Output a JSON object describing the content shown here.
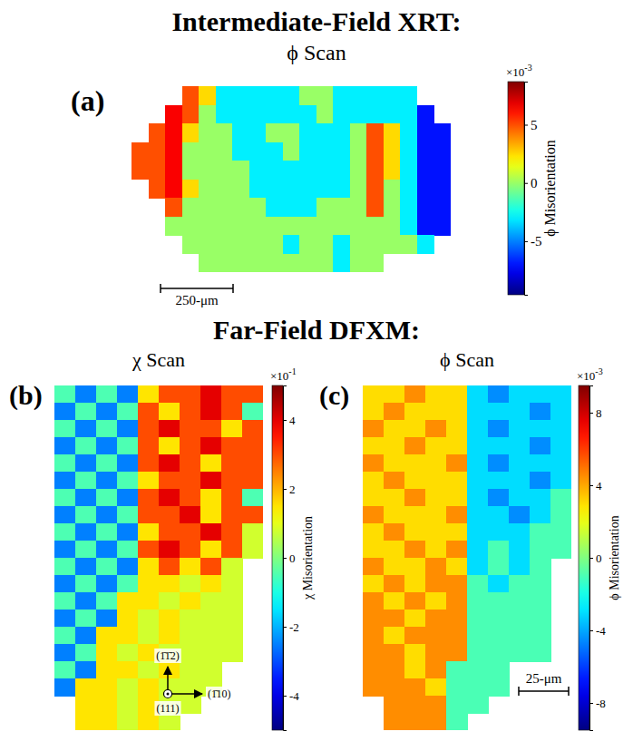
{
  "chart_data": [
    {
      "type": "heatmap",
      "heading": "Intermediate-Field XRT:",
      "title": "ϕ Scan",
      "panel_label": "(a)",
      "cells": [
        [
          null,
          null,
          null,
          5,
          2.5,
          -3,
          -3,
          -3,
          -3,
          -3,
          0,
          0,
          -3,
          -3,
          -3,
          -3,
          -3,
          null,
          null,
          null
        ],
        [
          null,
          null,
          6.5,
          5,
          0,
          -3,
          -3,
          -3,
          -3,
          -3,
          -3,
          0,
          -3,
          -3,
          -3,
          -3,
          -3,
          -7,
          null,
          null
        ],
        [
          null,
          5,
          6.5,
          2.5,
          0,
          0,
          -3,
          -3,
          0,
          0,
          -3,
          -3,
          -3,
          0,
          5,
          2.5,
          -3,
          -7,
          -7,
          null
        ],
        [
          5,
          5,
          6.5,
          0,
          0,
          0,
          -3,
          -3,
          -3,
          0,
          -3,
          -3,
          -3,
          0,
          5,
          2.5,
          -3,
          -7,
          -7,
          null
        ],
        [
          5,
          5,
          6.5,
          0,
          0,
          0,
          0,
          -3,
          -3,
          -3,
          -3,
          -3,
          -3,
          0,
          5,
          2.5,
          -3,
          -7,
          -7,
          null
        ],
        [
          null,
          5,
          6.5,
          2.5,
          0,
          0,
          0,
          -3,
          -3,
          -3,
          -3,
          -3,
          -3,
          0,
          5,
          0,
          -3,
          -7,
          -7,
          null
        ],
        [
          null,
          null,
          5,
          0,
          0,
          0,
          0,
          0,
          -3,
          -3,
          -3,
          0,
          0,
          0,
          5,
          0,
          -3,
          -7,
          -7,
          null
        ],
        [
          null,
          null,
          0,
          0,
          0,
          0,
          0,
          0,
          0,
          0,
          0,
          0,
          0,
          0,
          0,
          0,
          -3,
          -7,
          -7,
          null
        ],
        [
          null,
          null,
          null,
          0,
          0,
          0,
          0,
          0,
          0,
          -3,
          0,
          0,
          -3,
          0,
          0,
          0,
          0,
          -3,
          null,
          null
        ],
        [
          null,
          null,
          null,
          null,
          0,
          0,
          0,
          0,
          0,
          0,
          0,
          0,
          -3,
          0,
          0,
          null,
          null,
          null,
          null,
          null
        ]
      ],
      "colorbar": {
        "label": "ϕ Misorientation",
        "lim": [
          -9.6,
          8.7
        ],
        "ticks": [
          5,
          0,
          -5
        ],
        "multiplier": "×10",
        "exponent": "-3"
      },
      "scale_bar": "250-μm"
    },
    {
      "type": "heatmap",
      "heading": "Far-Field DFXM:",
      "title": "χ Scan",
      "panel_label": "(b)",
      "cells": [
        [
          -0.5,
          -2.5,
          -0.5,
          -2.5,
          1.5,
          3,
          3,
          4,
          3,
          3
        ],
        [
          -2.5,
          -0.5,
          -2.5,
          -0.5,
          3,
          1.5,
          3,
          4,
          3,
          -0.5
        ],
        [
          -0.5,
          -2.5,
          -0.5,
          -2.5,
          3,
          4,
          3,
          3,
          1.5,
          3
        ],
        [
          -2.5,
          -0.5,
          -2.5,
          -0.5,
          3,
          1.5,
          3,
          4,
          3,
          3
        ],
        [
          -0.5,
          -2.5,
          -0.5,
          -2.5,
          3,
          4,
          3,
          1.5,
          3,
          3
        ],
        [
          -2.5,
          -0.5,
          -2.5,
          -0.5,
          1.5,
          3,
          3,
          4,
          3,
          3
        ],
        [
          -0.5,
          -2.5,
          -0.5,
          -2.5,
          3,
          4,
          3,
          1.5,
          3,
          -0.5
        ],
        [
          -2.5,
          -0.5,
          -2.5,
          -0.5,
          3,
          3,
          4,
          1.5,
          3,
          3
        ],
        [
          -0.5,
          -2.5,
          -0.5,
          -2.5,
          1.5,
          3,
          3,
          4,
          3,
          0.8
        ],
        [
          -2.5,
          -0.5,
          -2.5,
          -0.5,
          3,
          4,
          3,
          1.5,
          3,
          0.8
        ],
        [
          -0.5,
          -2.5,
          -0.5,
          -2.5,
          1.5,
          3,
          1.5,
          3,
          0.8,
          null
        ],
        [
          -2.5,
          -0.5,
          -2.5,
          -0.5,
          1.5,
          1.5,
          0.8,
          1.5,
          0.8,
          null
        ],
        [
          -0.5,
          -2.5,
          -0.5,
          1.5,
          1.5,
          0.8,
          1.5,
          0.8,
          0.8,
          null
        ],
        [
          -2.5,
          -0.5,
          -2.5,
          1.5,
          0.8,
          1.5,
          0.8,
          0.8,
          0.8,
          null
        ],
        [
          -0.5,
          -2.5,
          1.5,
          1.5,
          0.8,
          1.5,
          0.8,
          0.8,
          0.8,
          null
        ],
        [
          -2.5,
          -0.5,
          1.5,
          0.8,
          1.5,
          0.8,
          0.8,
          0.8,
          0.8,
          null
        ],
        [
          -0.5,
          -2.5,
          1.5,
          1.5,
          0.8,
          1.5,
          0.8,
          0.8,
          null,
          null
        ],
        [
          -2.5,
          1.5,
          1.5,
          0.8,
          1.5,
          0.8,
          0.8,
          0.8,
          null,
          null
        ],
        [
          null,
          1.5,
          1.5,
          0.8,
          1.5,
          0.8,
          0.8,
          null,
          null,
          null
        ],
        [
          null,
          1.5,
          1.5,
          0.8,
          1.5,
          0.8,
          null,
          null,
          null,
          null
        ]
      ],
      "colorbar": {
        "label": "χ Misorientation",
        "lim": [
          -5,
          5
        ],
        "ticks": [
          4,
          2,
          0,
          -2,
          -4
        ],
        "multiplier": "×10",
        "exponent": "-1"
      },
      "annotations": [
        "(1̄1̄2)",
        "(111)",
        "(1̄10)"
      ]
    },
    {
      "type": "heatmap",
      "title": "ϕ Scan",
      "panel_label": "(c)",
      "cells": [
        [
          3,
          3,
          4.5,
          3,
          3,
          -3,
          -4.5,
          -3,
          -3,
          -3
        ],
        [
          3,
          4.5,
          3,
          3,
          3,
          -3,
          -3,
          -3,
          -4.5,
          -3
        ],
        [
          4.5,
          3,
          3,
          4.5,
          3,
          -3,
          -4.5,
          -3,
          -3,
          -3
        ],
        [
          3,
          3,
          4.5,
          3,
          3,
          -3,
          -3,
          -3,
          -4.5,
          -3
        ],
        [
          4.5,
          3,
          3,
          3,
          4.5,
          -3,
          -4.5,
          -3,
          -3,
          -3
        ],
        [
          3,
          4.5,
          3,
          3,
          3,
          -3,
          -3,
          -3,
          -4.5,
          -3
        ],
        [
          3,
          3,
          4.5,
          3,
          3,
          -3,
          -4.5,
          -3,
          -3,
          -1
        ],
        [
          4.5,
          3,
          3,
          3,
          4.5,
          -3,
          -3,
          -4.5,
          -3,
          -1
        ],
        [
          3,
          4.5,
          3,
          3,
          3,
          -3,
          -3,
          -3,
          -1,
          -1
        ],
        [
          3,
          3,
          4.5,
          3,
          4.5,
          -3,
          -1,
          -3,
          -1,
          -1
        ],
        [
          4.5,
          3,
          3,
          4.5,
          3,
          -3,
          -1,
          -3,
          -1,
          null
        ],
        [
          3,
          4.5,
          3,
          4.5,
          4.5,
          -1,
          -3,
          -1,
          -1,
          null
        ],
        [
          4.5,
          3,
          4.5,
          3,
          4.5,
          -1,
          -1,
          -1,
          -1,
          null
        ],
        [
          4.5,
          4.5,
          3,
          4.5,
          4.5,
          -1,
          -1,
          -1,
          -1,
          null
        ],
        [
          4.5,
          3,
          4.5,
          4.5,
          4.5,
          -1,
          -1,
          -1,
          -1,
          null
        ],
        [
          4.5,
          4.5,
          3,
          4.5,
          4.5,
          -1,
          -1,
          -1,
          -1,
          null
        ],
        [
          4.5,
          4.5,
          3,
          4.5,
          -1,
          -1,
          -1,
          null,
          null,
          null
        ],
        [
          4.5,
          4.5,
          4.5,
          3,
          -1,
          -1,
          -1,
          null,
          null,
          null
        ],
        [
          null,
          4.5,
          4.5,
          4.5,
          -1,
          -1,
          null,
          null,
          null,
          null
        ],
        [
          null,
          4.5,
          4.5,
          4.5,
          -1,
          null,
          null,
          null,
          null,
          null
        ]
      ],
      "colorbar": {
        "label": "ϕ Misorientation",
        "lim": [
          -9.5,
          9.5
        ],
        "ticks": [
          8,
          4,
          0,
          -4,
          -8
        ],
        "multiplier": "×10",
        "exponent": "-3"
      },
      "scale_bar": "25-μm"
    }
  ]
}
